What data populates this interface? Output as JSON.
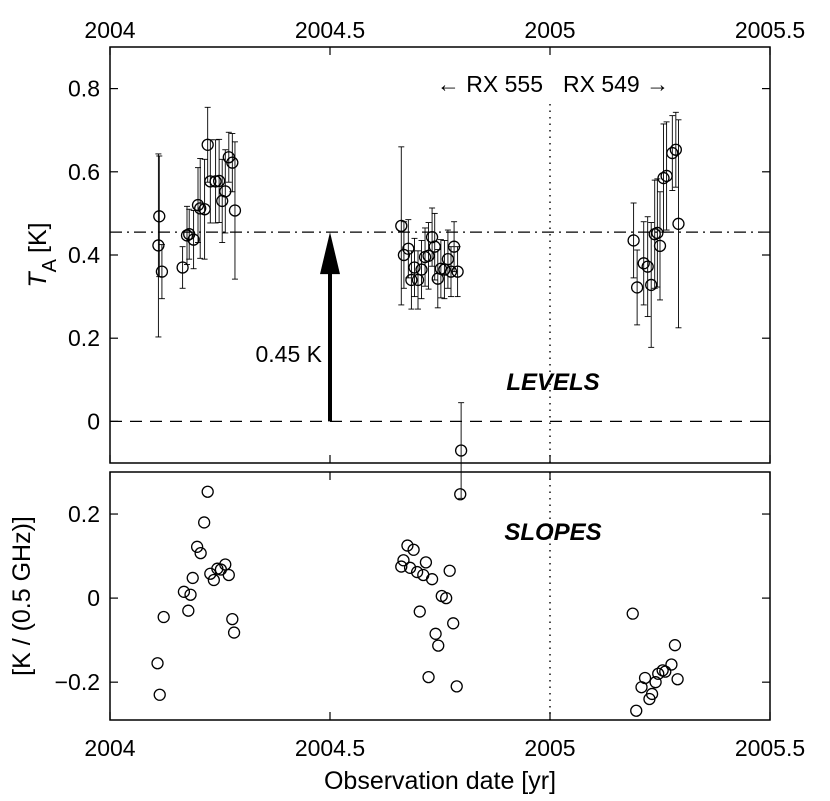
{
  "figure": {
    "xlabel": "Observation date [yr]",
    "x_ticks": [
      "2004",
      "2004.5",
      "2005",
      "2005.5"
    ],
    "xlim": [
      2004,
      2005.5
    ],
    "epoch_divider": 2005,
    "left_label": "← RX 555",
    "right_label": "RX 549 →"
  },
  "chart_data": [
    {
      "type": "scatter",
      "panel": "levels",
      "label": "LEVELS",
      "ylabel_main": "T",
      "ylabel_sub": "A",
      "ylabel_unit": "[K]",
      "ylim": [
        -0.1,
        0.9
      ],
      "y_ticks": [
        "0",
        "0.2",
        "0.4",
        "0.6",
        "0.8"
      ],
      "reference_level": 0.455,
      "zero_level": 0,
      "arrow": {
        "x": 2004.5,
        "from": 0,
        "to": 0.455,
        "label": "0.45 K"
      },
      "points": [
        {
          "x": 2004.11,
          "y": 0.423,
          "e": 0.22
        },
        {
          "x": 2004.112,
          "y": 0.493,
          "e": 0.145
        },
        {
          "x": 2004.118,
          "y": 0.36,
          "e": 0.065
        },
        {
          "x": 2004.165,
          "y": 0.37,
          "e": 0.05
        },
        {
          "x": 2004.175,
          "y": 0.447,
          "e": 0.07
        },
        {
          "x": 2004.18,
          "y": 0.45,
          "e": 0.06
        },
        {
          "x": 2004.19,
          "y": 0.437,
          "e": 0.07
        },
        {
          "x": 2004.2,
          "y": 0.52,
          "e": 0.09
        },
        {
          "x": 2004.205,
          "y": 0.512,
          "e": 0.12
        },
        {
          "x": 2004.215,
          "y": 0.51,
          "e": 0.12
        },
        {
          "x": 2004.222,
          "y": 0.665,
          "e": 0.09
        },
        {
          "x": 2004.228,
          "y": 0.577,
          "e": 0.1
        },
        {
          "x": 2004.24,
          "y": 0.577,
          "e": 0.1
        },
        {
          "x": 2004.248,
          "y": 0.578,
          "e": 0.1
        },
        {
          "x": 2004.255,
          "y": 0.53,
          "e": 0.1
        },
        {
          "x": 2004.262,
          "y": 0.553,
          "e": 0.1
        },
        {
          "x": 2004.27,
          "y": 0.635,
          "e": 0.06
        },
        {
          "x": 2004.278,
          "y": 0.622,
          "e": 0.07
        },
        {
          "x": 2004.284,
          "y": 0.507,
          "e": 0.165
        },
        {
          "x": 2004.662,
          "y": 0.47,
          "e": 0.19
        },
        {
          "x": 2004.668,
          "y": 0.4,
          "e": 0.08
        },
        {
          "x": 2004.678,
          "y": 0.415,
          "e": 0.07
        },
        {
          "x": 2004.685,
          "y": 0.34,
          "e": 0.07
        },
        {
          "x": 2004.692,
          "y": 0.37,
          "e": 0.07
        },
        {
          "x": 2004.7,
          "y": 0.34,
          "e": 0.07
        },
        {
          "x": 2004.708,
          "y": 0.365,
          "e": 0.07
        },
        {
          "x": 2004.716,
          "y": 0.395,
          "e": 0.07
        },
        {
          "x": 2004.724,
          "y": 0.398,
          "e": 0.08
        },
        {
          "x": 2004.732,
          "y": 0.443,
          "e": 0.07
        },
        {
          "x": 2004.738,
          "y": 0.42,
          "e": 0.08
        },
        {
          "x": 2004.745,
          "y": 0.343,
          "e": 0.07
        },
        {
          "x": 2004.752,
          "y": 0.367,
          "e": 0.07
        },
        {
          "x": 2004.76,
          "y": 0.365,
          "e": 0.07
        },
        {
          "x": 2004.768,
          "y": 0.39,
          "e": 0.07
        },
        {
          "x": 2004.775,
          "y": 0.36,
          "e": 0.06
        },
        {
          "x": 2004.782,
          "y": 0.42,
          "e": 0.06
        },
        {
          "x": 2004.79,
          "y": 0.36,
          "e": 0.06
        },
        {
          "x": 2004.798,
          "y": -0.07,
          "e": 0.115
        },
        {
          "x": 2005.19,
          "y": 0.435,
          "e": 0.09
        },
        {
          "x": 2005.198,
          "y": 0.322,
          "e": 0.09
        },
        {
          "x": 2005.213,
          "y": 0.38,
          "e": 0.1
        },
        {
          "x": 2005.222,
          "y": 0.372,
          "e": 0.12
        },
        {
          "x": 2005.23,
          "y": 0.328,
          "e": 0.15
        },
        {
          "x": 2005.238,
          "y": 0.45,
          "e": 0.13
        },
        {
          "x": 2005.244,
          "y": 0.453,
          "e": 0.13
        },
        {
          "x": 2005.25,
          "y": 0.422,
          "e": 0.13
        },
        {
          "x": 2005.258,
          "y": 0.585,
          "e": 0.13
        },
        {
          "x": 2005.265,
          "y": 0.59,
          "e": 0.13
        },
        {
          "x": 2005.278,
          "y": 0.645,
          "e": 0.09
        },
        {
          "x": 2005.286,
          "y": 0.653,
          "e": 0.09
        },
        {
          "x": 2005.292,
          "y": 0.475,
          "e": 0.25
        }
      ]
    },
    {
      "type": "scatter",
      "panel": "slopes",
      "label": "SLOPES",
      "ylabel": "[K / (0.5 GHz)]",
      "ylim": [
        -0.29,
        0.3
      ],
      "y_ticks": [
        "0.2",
        "0",
        "−0.2"
      ],
      "points": [
        {
          "x": 2004.108,
          "y": -0.155
        },
        {
          "x": 2004.113,
          "y": -0.23
        },
        {
          "x": 2004.122,
          "y": -0.045
        },
        {
          "x": 2004.168,
          "y": 0.015
        },
        {
          "x": 2004.178,
          "y": -0.03
        },
        {
          "x": 2004.183,
          "y": 0.008
        },
        {
          "x": 2004.188,
          "y": 0.048
        },
        {
          "x": 2004.198,
          "y": 0.122
        },
        {
          "x": 2004.206,
          "y": 0.107
        },
        {
          "x": 2004.214,
          "y": 0.18
        },
        {
          "x": 2004.222,
          "y": 0.253
        },
        {
          "x": 2004.228,
          "y": 0.058
        },
        {
          "x": 2004.236,
          "y": 0.043
        },
        {
          "x": 2004.244,
          "y": 0.07
        },
        {
          "x": 2004.252,
          "y": 0.068
        },
        {
          "x": 2004.262,
          "y": 0.08
        },
        {
          "x": 2004.27,
          "y": 0.055
        },
        {
          "x": 2004.278,
          "y": -0.05
        },
        {
          "x": 2004.282,
          "y": -0.082
        },
        {
          "x": 2004.662,
          "y": 0.075
        },
        {
          "x": 2004.667,
          "y": 0.09
        },
        {
          "x": 2004.676,
          "y": 0.125
        },
        {
          "x": 2004.682,
          "y": 0.072
        },
        {
          "x": 2004.69,
          "y": 0.115
        },
        {
          "x": 2004.698,
          "y": 0.062
        },
        {
          "x": 2004.704,
          "y": -0.032
        },
        {
          "x": 2004.712,
          "y": 0.055
        },
        {
          "x": 2004.718,
          "y": 0.085
        },
        {
          "x": 2004.724,
          "y": -0.188
        },
        {
          "x": 2004.732,
          "y": 0.045
        },
        {
          "x": 2004.74,
          "y": -0.085
        },
        {
          "x": 2004.746,
          "y": -0.113
        },
        {
          "x": 2004.754,
          "y": 0.005
        },
        {
          "x": 2004.764,
          "y": 0
        },
        {
          "x": 2004.772,
          "y": 0.065
        },
        {
          "x": 2004.78,
          "y": -0.06
        },
        {
          "x": 2004.788,
          "y": -0.21
        },
        {
          "x": 2004.796,
          "y": 0.247
        },
        {
          "x": 2005.188,
          "y": -0.037
        },
        {
          "x": 2005.196,
          "y": -0.268
        },
        {
          "x": 2005.208,
          "y": -0.212
        },
        {
          "x": 2005.216,
          "y": -0.19
        },
        {
          "x": 2005.226,
          "y": -0.24
        },
        {
          "x": 2005.232,
          "y": -0.228
        },
        {
          "x": 2005.24,
          "y": -0.2
        },
        {
          "x": 2005.246,
          "y": -0.18
        },
        {
          "x": 2005.256,
          "y": -0.172
        },
        {
          "x": 2005.262,
          "y": -0.175
        },
        {
          "x": 2005.276,
          "y": -0.158
        },
        {
          "x": 2005.284,
          "y": -0.112
        },
        {
          "x": 2005.29,
          "y": -0.193
        }
      ]
    }
  ]
}
